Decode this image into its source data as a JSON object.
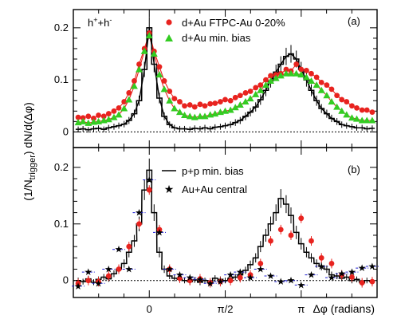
{
  "chart_data": [
    {
      "type": "scatter",
      "panel_label": "(a)",
      "annotation": "h+ + h−",
      "annotation_parts": {
        "base1": "h",
        "sup1": "+",
        "plus": "+",
        "base2": "h",
        "sup2": "-"
      },
      "xlim": [
        -1.57,
        4.71
      ],
      "ylim": [
        -0.03,
        0.235
      ],
      "yticks": [
        0,
        0.1,
        0.2
      ],
      "ytick_labels": [
        "0",
        "0.1",
        "0.2"
      ],
      "legend_position": "top-right",
      "legend": [
        {
          "label": "d+Au FTPC-Au 0-20%",
          "color": "#e8231f",
          "marker": "circle"
        },
        {
          "label": "d+Au min. bias",
          "color": "#33cc22",
          "marker": "triangle"
        }
      ],
      "series": [
        {
          "name": "d+Au FTPC-Au 0-20%",
          "color": "#e8231f",
          "marker": "circle",
          "x": [
            -1.47,
            -1.37,
            -1.26,
            -1.15,
            -1.05,
            -0.94,
            -0.84,
            -0.73,
            -0.63,
            -0.52,
            -0.42,
            -0.31,
            -0.21,
            -0.1,
            0.0,
            0.1,
            0.21,
            0.31,
            0.42,
            0.52,
            0.63,
            0.73,
            0.84,
            0.94,
            1.05,
            1.15,
            1.26,
            1.36,
            1.47,
            1.57,
            1.68,
            1.78,
            1.88,
            1.99,
            2.09,
            2.2,
            2.3,
            2.41,
            2.51,
            2.62,
            2.72,
            2.83,
            2.93,
            3.04,
            3.14,
            3.25,
            3.35,
            3.46,
            3.56,
            3.67,
            3.77,
            3.88,
            3.98,
            4.08,
            4.19,
            4.29,
            4.4,
            4.5,
            4.61
          ],
          "y": [
            0.028,
            0.027,
            0.03,
            0.026,
            0.032,
            0.03,
            0.035,
            0.04,
            0.046,
            0.058,
            0.075,
            0.098,
            0.13,
            0.16,
            0.19,
            0.155,
            0.125,
            0.098,
            0.078,
            0.064,
            0.058,
            0.05,
            0.052,
            0.048,
            0.053,
            0.05,
            0.054,
            0.055,
            0.058,
            0.062,
            0.06,
            0.066,
            0.07,
            0.075,
            0.078,
            0.085,
            0.09,
            0.1,
            0.108,
            0.11,
            0.112,
            0.12,
            0.117,
            0.13,
            0.12,
            0.118,
            0.112,
            0.105,
            0.095,
            0.09,
            0.082,
            0.07,
            0.062,
            0.058,
            0.05,
            0.046,
            0.042,
            0.042,
            0.038
          ]
        },
        {
          "name": "d+Au min. bias",
          "color": "#33cc22",
          "marker": "triangle",
          "x": [
            -1.47,
            -1.37,
            -1.26,
            -1.15,
            -1.05,
            -0.94,
            -0.84,
            -0.73,
            -0.63,
            -0.52,
            -0.42,
            -0.31,
            -0.21,
            -0.1,
            0.0,
            0.1,
            0.21,
            0.31,
            0.42,
            0.52,
            0.63,
            0.73,
            0.84,
            0.94,
            1.05,
            1.15,
            1.26,
            1.36,
            1.47,
            1.57,
            1.68,
            1.78,
            1.88,
            1.99,
            2.09,
            2.2,
            2.3,
            2.41,
            2.51,
            2.62,
            2.72,
            2.83,
            2.93,
            3.04,
            3.14,
            3.25,
            3.35,
            3.46,
            3.56,
            3.67,
            3.77,
            3.88,
            3.98,
            4.08,
            4.19,
            4.29,
            4.4,
            4.5,
            4.61
          ],
          "y": [
            0.018,
            0.02,
            0.017,
            0.019,
            0.02,
            0.022,
            0.024,
            0.028,
            0.033,
            0.045,
            0.062,
            0.088,
            0.12,
            0.155,
            0.185,
            0.15,
            0.11,
            0.082,
            0.06,
            0.045,
            0.038,
            0.032,
            0.03,
            0.028,
            0.03,
            0.03,
            0.033,
            0.035,
            0.038,
            0.04,
            0.042,
            0.047,
            0.052,
            0.058,
            0.064,
            0.072,
            0.08,
            0.09,
            0.098,
            0.103,
            0.108,
            0.112,
            0.112,
            0.112,
            0.11,
            0.105,
            0.098,
            0.09,
            0.08,
            0.07,
            0.058,
            0.048,
            0.04,
            0.033,
            0.027,
            0.025,
            0.022,
            0.022,
            0.022
          ]
        },
        {
          "name": "p+p min. bias",
          "color": "#000000",
          "marker": "histogram",
          "x": [
            -1.47,
            -1.37,
            -1.26,
            -1.15,
            -1.05,
            -0.94,
            -0.84,
            -0.73,
            -0.63,
            -0.52,
            -0.42,
            -0.31,
            -0.21,
            -0.1,
            0.0,
            0.1,
            0.21,
            0.31,
            0.42,
            0.52,
            0.63,
            0.73,
            0.84,
            0.94,
            1.05,
            1.15,
            1.26,
            1.36,
            1.47,
            1.57,
            1.68,
            1.78,
            1.88,
            1.99,
            2.09,
            2.2,
            2.3,
            2.41,
            2.51,
            2.62,
            2.72,
            2.83,
            2.93,
            3.04,
            3.14,
            3.25,
            3.35,
            3.46,
            3.56,
            3.67,
            3.77,
            3.88,
            3.98,
            4.08,
            4.19,
            4.29,
            4.4,
            4.5,
            4.61
          ],
          "y": [
            0.005,
            0.006,
            0.004,
            0.006,
            0.007,
            0.005,
            0.008,
            0.01,
            0.012,
            0.015,
            0.022,
            0.035,
            0.06,
            0.12,
            0.2,
            0.13,
            0.065,
            0.03,
            0.014,
            0.008,
            0.006,
            0.006,
            0.005,
            0.007,
            0.006,
            0.008,
            0.006,
            0.009,
            0.01,
            0.012,
            0.014,
            0.018,
            0.022,
            0.03,
            0.038,
            0.048,
            0.062,
            0.08,
            0.098,
            0.115,
            0.13,
            0.145,
            0.15,
            0.14,
            0.12,
            0.1,
            0.08,
            0.06,
            0.045,
            0.035,
            0.026,
            0.02,
            0.014,
            0.012,
            0.01,
            0.008,
            0.008,
            0.006,
            0.007
          ]
        }
      ]
    },
    {
      "type": "scatter",
      "panel_label": "(b)",
      "xlim": [
        -1.57,
        4.71
      ],
      "ylim": [
        -0.03,
        0.235
      ],
      "yticks": [
        0,
        0.1,
        0.2
      ],
      "ytick_labels": [
        "0",
        "0.1",
        "0.2"
      ],
      "xticks": [
        0,
        1.5708,
        3.1416
      ],
      "xtick_labels": [
        "0",
        "π/2",
        "π"
      ],
      "xlabel": "Δφ (radians)",
      "ylabel": "(1/N_trigger) dN/d(Δφ)",
      "ylabel_parts": {
        "pre": "(1/N",
        "sub": "trigger",
        "post": ") dN/d(Δφ)"
      },
      "legend_position": "top-right",
      "legend": [
        {
          "label": "p+p min. bias",
          "color": "#000000",
          "marker": "line"
        },
        {
          "label": "Au+Au central",
          "color": "#1b1bd1",
          "marker": "star"
        }
      ],
      "series": [
        {
          "name": "p+p min. bias",
          "color": "#000000",
          "marker": "histogram",
          "x": [
            -1.47,
            -1.37,
            -1.26,
            -1.15,
            -1.05,
            -0.94,
            -0.84,
            -0.73,
            -0.63,
            -0.52,
            -0.42,
            -0.31,
            -0.21,
            -0.1,
            0.0,
            0.1,
            0.21,
            0.31,
            0.42,
            0.52,
            0.63,
            0.73,
            0.84,
            0.94,
            1.05,
            1.15,
            1.26,
            1.36,
            1.47,
            1.57,
            1.68,
            1.78,
            1.88,
            1.99,
            2.09,
            2.2,
            2.3,
            2.41,
            2.51,
            2.62,
            2.72,
            2.83,
            2.93,
            3.04,
            3.14,
            3.25,
            3.35,
            3.46,
            3.56,
            3.67,
            3.77,
            3.88,
            3.98,
            4.08,
            4.19,
            4.29,
            4.4,
            4.5,
            4.61
          ],
          "y": [
            0.0,
            -0.002,
            0.003,
            -0.003,
            0.002,
            0.006,
            0.003,
            0.012,
            0.02,
            0.03,
            0.05,
            0.07,
            0.1,
            0.16,
            0.195,
            0.12,
            0.05,
            0.02,
            0.008,
            0.004,
            0.002,
            0.0,
            -0.002,
            0.001,
            -0.003,
            0.0,
            -0.004,
            0.004,
            0.002,
            0.0,
            0.004,
            0.006,
            0.01,
            0.018,
            0.028,
            0.04,
            0.06,
            0.08,
            0.1,
            0.12,
            0.145,
            0.135,
            0.115,
            0.085,
            0.065,
            0.05,
            0.04,
            0.03,
            0.025,
            0.02,
            0.01,
            0.008,
            0.004,
            0.006,
            0.0,
            0.002,
            -0.004,
            0.0,
            -0.002
          ]
        },
        {
          "name": "d+Au FTPC-Au 0-20%",
          "color": "#e8231f",
          "marker": "circle",
          "x": [
            -1.47,
            -1.26,
            -1.05,
            -0.84,
            -0.63,
            -0.42,
            -0.21,
            0.0,
            0.21,
            0.42,
            0.63,
            0.84,
            1.05,
            1.26,
            1.47,
            1.68,
            1.88,
            2.09,
            2.3,
            2.51,
            2.72,
            2.93,
            3.14,
            3.35,
            3.56,
            3.77,
            3.98,
            4.19,
            4.4,
            4.61
          ],
          "y": [
            -0.005,
            0.0,
            -0.002,
            0.008,
            0.02,
            0.06,
            0.1,
            0.16,
            0.09,
            0.02,
            0.004,
            0.0,
            0.003,
            -0.004,
            -0.002,
            0.0,
            0.005,
            0.01,
            0.03,
            0.07,
            0.09,
            0.08,
            0.11,
            0.07,
            0.04,
            0.03,
            0.01,
            0.006,
            -0.004,
            -0.002
          ]
        },
        {
          "name": "Au+Au central",
          "color": "#1b1bd1",
          "marker": "star",
          "x": [
            -1.47,
            -1.26,
            -1.05,
            -0.84,
            -0.63,
            -0.42,
            -0.21,
            0.0,
            0.21,
            0.42,
            0.63,
            0.84,
            1.05,
            1.26,
            1.47,
            1.68,
            1.88,
            2.09,
            2.3,
            2.51,
            2.72,
            2.93,
            3.14,
            3.35,
            3.56,
            3.77,
            3.98,
            4.19,
            4.4,
            4.61
          ],
          "y": [
            -0.01,
            0.015,
            -0.005,
            0.02,
            0.055,
            0.02,
            0.12,
            0.178,
            0.085,
            0.02,
            0.01,
            0.005,
            0.002,
            -0.005,
            -0.002,
            0.01,
            0.015,
            0.005,
            0.02,
            0.008,
            -0.002,
            0.0,
            -0.008,
            0.01,
            0.025,
            0.005,
            0.012,
            0.015,
            0.022,
            0.025
          ]
        }
      ]
    }
  ]
}
